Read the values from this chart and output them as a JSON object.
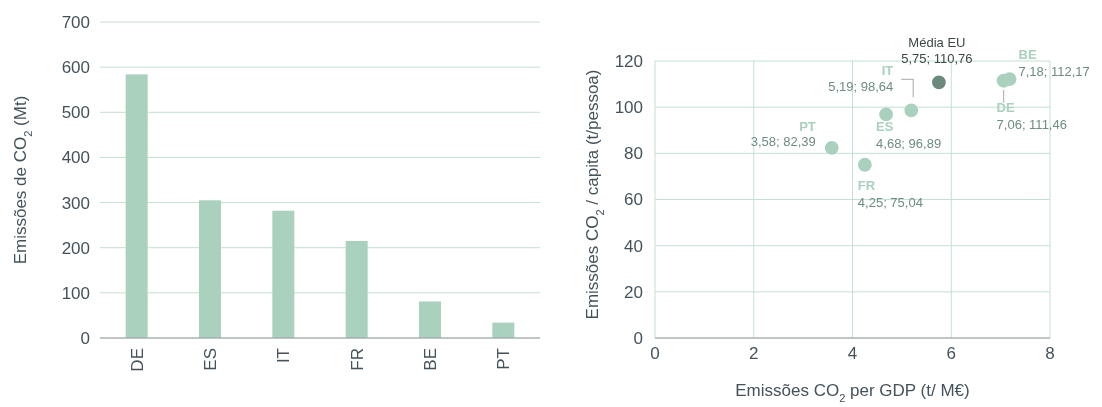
{
  "chart_data": [
    {
      "type": "bar",
      "ylabel": "Emissões de CO$_{2}$ (Mt)",
      "categories": [
        "DE",
        "ES",
        "IT",
        "FR",
        "BE",
        "PT"
      ],
      "values": [
        584,
        305,
        282,
        215,
        81,
        34
      ],
      "color": "#a9d1bd",
      "ylim": [
        0,
        700
      ],
      "yticks": [
        0,
        100,
        200,
        300,
        400,
        500,
        600,
        700
      ],
      "grid": "y"
    },
    {
      "type": "scatter",
      "xlabel": "Emissões CO$_{2}$ per GDP (t/ M€)",
      "ylabel": "Emissões CO$_{2}$ / capita (t/pessoa)",
      "xlim": [
        0,
        8
      ],
      "xticks": [
        0,
        2,
        4,
        6,
        8
      ],
      "ylim": [
        0,
        120
      ],
      "yticks": [
        0,
        20,
        40,
        60,
        80,
        100,
        120
      ],
      "grid": true,
      "marker": "circle",
      "series": [
        {
          "name": "PT",
          "color": "#a9d1bd",
          "x": [
            3.58
          ],
          "values": [
            82.39
          ],
          "value_labels": [
            "3,58; 82,39"
          ]
        },
        {
          "name": "FR",
          "color": "#a9d1bd",
          "x": [
            4.25
          ],
          "values": [
            75.04
          ],
          "value_labels": [
            "4,25; 75,04"
          ]
        },
        {
          "name": "ES",
          "color": "#a9d1bd",
          "x": [
            4.68
          ],
          "values": [
            96.89
          ],
          "value_labels": [
            "4,68; 96,89"
          ]
        },
        {
          "name": "IT",
          "color": "#a9d1bd",
          "x": [
            5.19
          ],
          "values": [
            98.64
          ],
          "value_labels": [
            "5,19; 98,64"
          ]
        },
        {
          "name": "Média EU",
          "color": "#6b8a7b",
          "x": [
            5.75
          ],
          "values": [
            110.76
          ],
          "value_labels": [
            "5,75; 110,76"
          ]
        },
        {
          "name": "DE",
          "color": "#a9d1bd",
          "x": [
            7.06
          ],
          "values": [
            111.46
          ],
          "value_labels": [
            "7,06; 111,46"
          ]
        },
        {
          "name": "BE",
          "color": "#a9d1bd",
          "x": [
            7.18
          ],
          "values": [
            112.17
          ],
          "value_labels": [
            "7,18; 112,17"
          ]
        }
      ]
    }
  ]
}
